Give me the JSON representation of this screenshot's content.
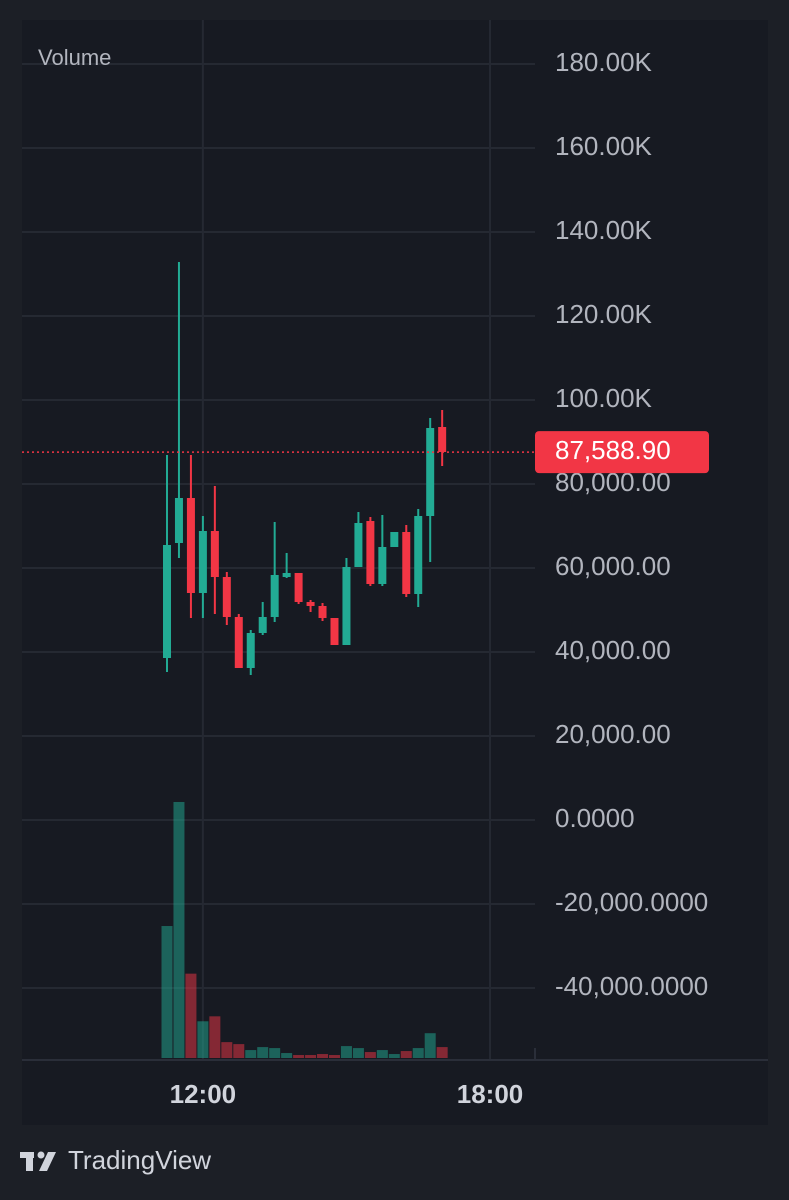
{
  "chart_data": {
    "type": "candlestick",
    "brand": "TradingView",
    "xlim": [
      8.22,
      18.94
    ],
    "xticks": [
      {
        "value": 12,
        "label": "12:00"
      },
      {
        "value": 18,
        "label": "18:00"
      }
    ],
    "ylim": [
      -57143,
      190476
    ],
    "yticks": [
      {
        "value": 180000,
        "label": "180.00K"
      },
      {
        "value": 160000,
        "label": "160.00K"
      },
      {
        "value": 140000,
        "label": "140.00K"
      },
      {
        "value": 120000,
        "label": "120.00K"
      },
      {
        "value": 100000,
        "label": "100.00K"
      },
      {
        "value": 80000,
        "label": "80,000.00"
      },
      {
        "value": 60000,
        "label": "60,000.00"
      },
      {
        "value": 40000,
        "label": "40,000.00"
      },
      {
        "value": 20000,
        "label": "20,000.00"
      },
      {
        "value": 0,
        "label": "0.0000"
      },
      {
        "value": -20000,
        "label": "-20,000.0000"
      },
      {
        "value": -40000,
        "label": "-40,000.0000"
      }
    ],
    "grid": true,
    "colors": {
      "up": "#22ab94",
      "down": "#f23645"
    },
    "candles": {
      "x": [
        11.25,
        11.5,
        11.75,
        12,
        12.25,
        12.5,
        12.75,
        13,
        13.25,
        13.5,
        13.75,
        14,
        14.25,
        14.5,
        14.75,
        15,
        15.25,
        15.5,
        15.75,
        16,
        16.25,
        16.5,
        16.75,
        17
      ],
      "open": [
        38571,
        65952,
        76667,
        54048,
        68810,
        57857,
        48333,
        36190,
        44524,
        48333,
        57857,
        58810,
        51905,
        50952,
        48095,
        41667,
        60238,
        71190,
        56190,
        65000,
        68571,
        53810,
        72381,
        93571
      ],
      "high": [
        86905,
        132857,
        86905,
        72381,
        79524,
        59048,
        49048,
        45238,
        51905,
        70952,
        63571,
        58810,
        52381,
        51667,
        48095,
        62381,
        73333,
        72143,
        72619,
        68571,
        70238,
        74048,
        95714,
        97619
      ],
      "low": [
        35238,
        62381,
        48095,
        48095,
        49048,
        46429,
        36190,
        34524,
        44048,
        47143,
        57619,
        51429,
        49524,
        47381,
        41667,
        41667,
        60238,
        55714,
        55714,
        65000,
        53095,
        50714,
        61429,
        84286
      ],
      "close": [
        65476,
        76667,
        54048,
        68810,
        57857,
        48333,
        36190,
        44524,
        48333,
        58333,
        58810,
        51905,
        50952,
        48095,
        41667,
        60238,
        70714,
        56190,
        65000,
        68571,
        53810,
        72381,
        93333,
        87619
      ]
    },
    "volume": {
      "name": "Volume",
      "ylim": [
        0,
        260
      ],
      "values": [
        133,
        258,
        85,
        37,
        42,
        16,
        14,
        8,
        11,
        10,
        5,
        3,
        3,
        4,
        3,
        12,
        10,
        6,
        8,
        4,
        7,
        10,
        25,
        11
      ]
    },
    "last_price": {
      "value": 87588.9,
      "label": "87,588.90"
    }
  }
}
